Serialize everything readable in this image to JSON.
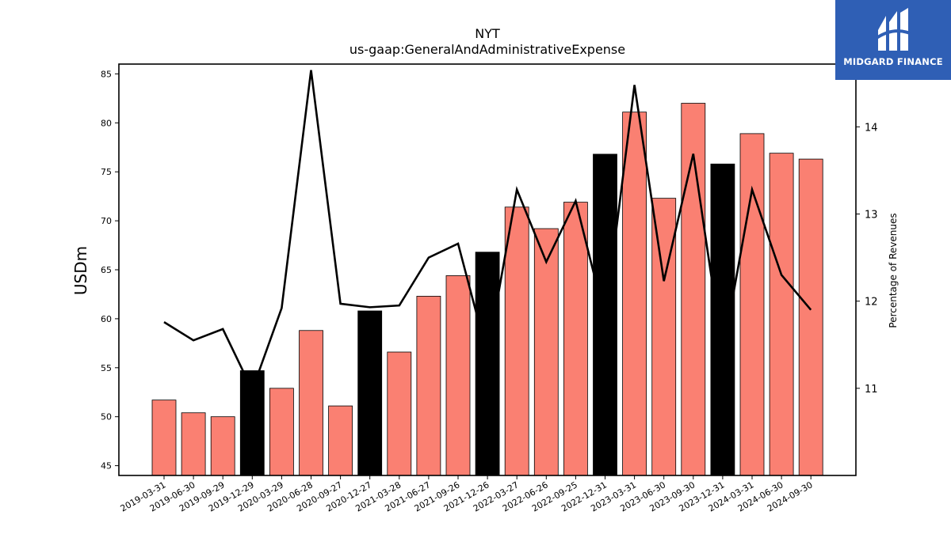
{
  "brand": {
    "name": "MIDGARD FINANCE",
    "accent": "#2f5fb5"
  },
  "chart_data": {
    "type": "bar",
    "title": "NYT",
    "subtitle": "us-gaap:GeneralAndAdministrativeExpense",
    "ylabel": "USDm",
    "y2label": "Percentage of Revenues",
    "ylim": [
      44,
      86
    ],
    "y2lim": [
      10.0,
      14.72
    ],
    "yticks": [
      45,
      50,
      55,
      60,
      65,
      70,
      75,
      80,
      85
    ],
    "y2ticks": [
      11,
      12,
      13,
      14
    ],
    "categories": [
      "2019-03-31",
      "2019-06-30",
      "2019-09-29",
      "2019-12-29",
      "2020-03-29",
      "2020-06-28",
      "2020-09-27",
      "2020-12-27",
      "2021-03-28",
      "2021-06-27",
      "2021-09-26",
      "2021-12-26",
      "2022-03-27",
      "2022-06-26",
      "2022-09-25",
      "2022-12-31",
      "2023-03-31",
      "2023-06-30",
      "2023-09-30",
      "2023-12-31",
      "2024-03-31",
      "2024-06-30",
      "2024-09-30"
    ],
    "series": [
      {
        "type": "bar",
        "values": [
          51.7,
          50.4,
          50.0,
          54.7,
          52.9,
          58.8,
          51.1,
          60.8,
          56.6,
          62.3,
          64.4,
          66.8,
          71.4,
          69.2,
          71.9,
          76.8,
          81.1,
          72.3,
          82.0,
          75.8,
          78.9,
          76.9,
          76.3
        ],
        "quarter_end": [
          false,
          false,
          false,
          true,
          false,
          false,
          false,
          true,
          false,
          false,
          false,
          true,
          false,
          false,
          false,
          true,
          false,
          false,
          false,
          true,
          false,
          false,
          false
        ]
      },
      {
        "type": "line",
        "axis": "right",
        "values": [
          11.76,
          11.55,
          11.68,
          10.98,
          11.92,
          14.65,
          11.97,
          11.93,
          11.95,
          12.5,
          12.66,
          11.38,
          13.28,
          12.45,
          13.15,
          11.8,
          14.48,
          12.23,
          13.69,
          11.4,
          13.28,
          12.3,
          11.9
        ]
      }
    ],
    "colors": {
      "bar": "#fa8072",
      "bar_highlight": "#000000",
      "line": "#000000"
    },
    "grid": false,
    "legend": "none"
  }
}
